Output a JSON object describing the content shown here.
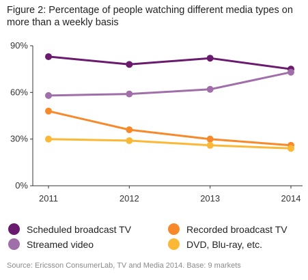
{
  "chart_data": {
    "type": "line",
    "title": "Figure 2: Percentage of people watching different media types on more than a weekly basis",
    "categories": [
      "2011",
      "2012",
      "2013",
      "2014"
    ],
    "ylim": [
      0,
      90
    ],
    "yticks": [
      "0%",
      "30%",
      "60%",
      "90%"
    ],
    "grid": false,
    "legend_position": "bottom",
    "series": [
      {
        "name": "Scheduled broadcast TV",
        "color": "#6a1b6e",
        "values": [
          83,
          78,
          82,
          75
        ]
      },
      {
        "name": "Streamed video",
        "color": "#a06ea8",
        "values": [
          58,
          59,
          62,
          73
        ]
      },
      {
        "name": "Recorded broadcast TV",
        "color": "#f7892a",
        "values": [
          48,
          36,
          30,
          26
        ]
      },
      {
        "name": "DVD, Blu-ray, etc.",
        "color": "#fbb836",
        "values": [
          30,
          29,
          26,
          24
        ]
      }
    ],
    "source": "Source: Ericsson ConsumerLab, TV and Media 2014. Base: 9 markets"
  }
}
